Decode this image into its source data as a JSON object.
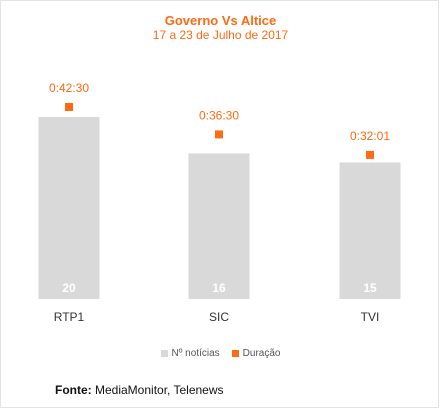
{
  "chart_data": {
    "type": "bar",
    "title": "Governo Vs Altice",
    "subtitle": "17 a 23 de Julho de 2017",
    "categories": [
      "RTP1",
      "SIC",
      "TVI"
    ],
    "series": [
      {
        "name": "Nº notícias",
        "values": [
          20,
          16,
          15
        ],
        "color": "#d9d9d9"
      },
      {
        "name": "Duração",
        "values": [
          "0:42:30",
          "0:36:30",
          "0:32:01"
        ],
        "color": "#ff6a13"
      }
    ],
    "legend_position": "bottom",
    "grid": false
  },
  "source": {
    "label": "Fonte:",
    "text": "MediaMonitor, Telenews"
  }
}
